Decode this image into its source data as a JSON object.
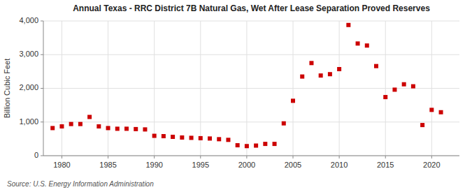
{
  "chart_data": {
    "type": "scatter",
    "title": "Annual Texas - RRC District 7B Natural Gas, Wet After Lease Separation Proved Reserves",
    "ylabel": "Billion Cubic Feet",
    "annotation": "Source: U.S. Energy Information Administration",
    "color": "#cc0000",
    "marker": "square",
    "grid": true,
    "xlim": [
      1978,
      2023
    ],
    "ylim": [
      0,
      4000
    ],
    "xticks": [
      1980,
      1985,
      1990,
      1995,
      2000,
      2005,
      2010,
      2015,
      2020
    ],
    "yticks": [
      0,
      {
        "value": 1000,
        "label": "1,000"
      },
      {
        "value": 2000,
        "label": "2,000"
      },
      {
        "value": 3000,
        "label": "3,000"
      },
      {
        "value": 4000,
        "label": "4,000"
      }
    ],
    "x": [
      1979,
      1980,
      1981,
      1982,
      1983,
      1984,
      1985,
      1986,
      1987,
      1988,
      1989,
      1990,
      1991,
      1992,
      1993,
      1994,
      1995,
      1996,
      1997,
      1998,
      1999,
      2000,
      2001,
      2002,
      2003,
      2004,
      2005,
      2006,
      2007,
      2008,
      2009,
      2010,
      2011,
      2012,
      2013,
      2014,
      2015,
      2016,
      2017,
      2018,
      2019,
      2020,
      2021
    ],
    "values": [
      820,
      870,
      940,
      940,
      1150,
      870,
      820,
      800,
      800,
      790,
      780,
      590,
      580,
      560,
      540,
      530,
      520,
      510,
      490,
      470,
      310,
      285,
      300,
      350,
      350,
      960,
      1630,
      2350,
      2750,
      2380,
      2420,
      2570,
      3880,
      3330,
      3270,
      2660,
      1740,
      1960,
      2120,
      2060,
      910,
      1360,
      1290
    ]
  }
}
